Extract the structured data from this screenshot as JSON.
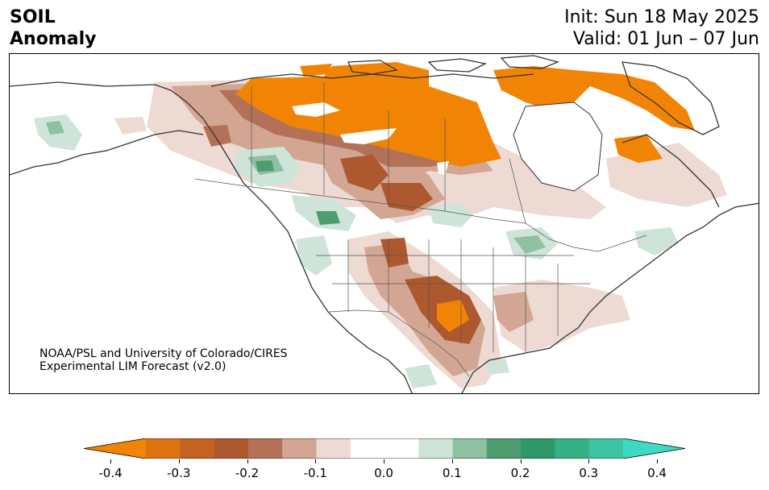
{
  "header": {
    "variable": "SOIL",
    "field": "Anomaly",
    "init": "Init: Sun 18 May 2025",
    "valid": "Valid: 01 Jun – 07 Jun"
  },
  "credit": {
    "line1": "NOAA/PSL and University of Colorado/CIRES",
    "line2": "Experimental LIM Forecast (v2.0)"
  },
  "colorbar": {
    "min": -0.4,
    "max": 0.4,
    "ticks": [
      "-0.4",
      "-0.3",
      "-0.2",
      "-0.1",
      "0.0",
      "0.1",
      "0.2",
      "0.3",
      "0.4"
    ],
    "colors": [
      "#f28405",
      "#dd7411",
      "#c6621f",
      "#ad582e",
      "#b37158",
      "#d3a693",
      "#eddad2",
      "#ffffff",
      "#ffffff",
      "#cfe4d8",
      "#8ec0a2",
      "#4e9c6f",
      "#2e9868",
      "#35b086",
      "#3ec3a4",
      "#3dd9c3"
    ]
  },
  "map": {
    "ocean_color": "#ffffff",
    "land_color": "#ffffff",
    "coast_color": "#333333"
  }
}
